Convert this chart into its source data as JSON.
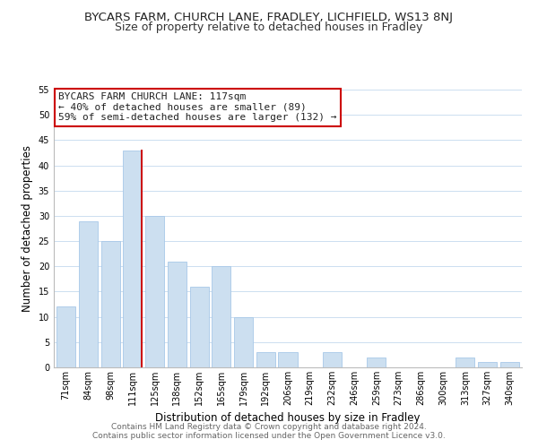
{
  "title": "BYCARS FARM, CHURCH LANE, FRADLEY, LICHFIELD, WS13 8NJ",
  "subtitle": "Size of property relative to detached houses in Fradley",
  "xlabel": "Distribution of detached houses by size in Fradley",
  "ylabel": "Number of detached properties",
  "bar_labels": [
    "71sqm",
    "84sqm",
    "98sqm",
    "111sqm",
    "125sqm",
    "138sqm",
    "152sqm",
    "165sqm",
    "179sqm",
    "192sqm",
    "206sqm",
    "219sqm",
    "232sqm",
    "246sqm",
    "259sqm",
    "273sqm",
    "286sqm",
    "300sqm",
    "313sqm",
    "327sqm",
    "340sqm"
  ],
  "bar_values": [
    12,
    29,
    25,
    43,
    30,
    21,
    16,
    20,
    10,
    3,
    3,
    0,
    3,
    0,
    2,
    0,
    0,
    0,
    2,
    1,
    1
  ],
  "bar_color": "#ccdff0",
  "bar_edge_color": "#a8c8e8",
  "highlight_index": 3,
  "highlight_line_color": "#cc0000",
  "ylim": [
    0,
    55
  ],
  "yticks": [
    0,
    5,
    10,
    15,
    20,
    25,
    30,
    35,
    40,
    45,
    50,
    55
  ],
  "annotation_line1": "BYCARS FARM CHURCH LANE: 117sqm",
  "annotation_line2": "← 40% of detached houses are smaller (89)",
  "annotation_line3": "59% of semi-detached houses are larger (132) →",
  "footer_line1": "Contains HM Land Registry data © Crown copyright and database right 2024.",
  "footer_line2": "Contains public sector information licensed under the Open Government Licence v3.0.",
  "background_color": "#ffffff",
  "grid_color": "#ccdff0",
  "title_fontsize": 9.5,
  "subtitle_fontsize": 9,
  "axis_fontsize": 8.5,
  "tick_fontsize": 7,
  "annotation_fontsize": 8,
  "footer_fontsize": 6.5
}
